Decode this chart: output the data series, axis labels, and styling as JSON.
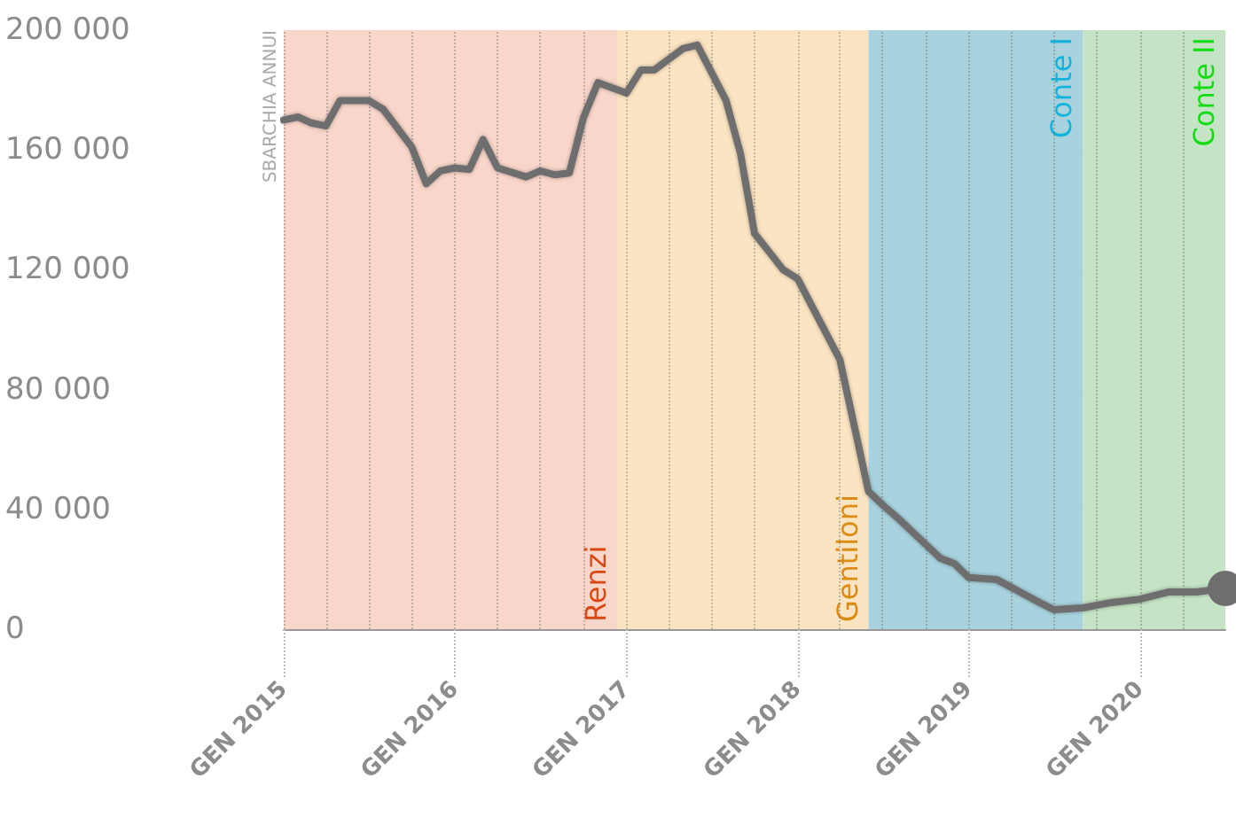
{
  "chart_data": {
    "type": "line",
    "ylabel": "SBARCHIA ANNUI",
    "x": [
      "2015-01",
      "2015-02",
      "2015-03",
      "2015-04",
      "2015-05",
      "2015-07",
      "2015-08",
      "2015-10",
      "2015-11",
      "2015-12",
      "2016-01",
      "2016-02",
      "2016-03",
      "2016-04",
      "2016-06",
      "2016-07",
      "2016-08",
      "2016-09",
      "2016-10",
      "2016-11",
      "2017-01",
      "2017-02",
      "2017-03",
      "2017-05",
      "2017-06",
      "2017-08",
      "2017-09",
      "2017-10",
      "2017-11",
      "2017-12",
      "2018-01",
      "2018-04",
      "2018-06",
      "2018-07",
      "2018-08",
      "2018-11",
      "2018-12",
      "2019-01",
      "2019-03",
      "2019-06",
      "2019-07",
      "2019-09",
      "2019-11",
      "2020-01",
      "2020-03",
      "2020-05",
      "2020-07"
    ],
    "series": [
      {
        "color": "#6e6e6e",
        "values": [
          170000,
          171000,
          169000,
          168000,
          176500,
          176500,
          173600,
          161000,
          148700,
          153000,
          154000,
          153500,
          163500,
          154000,
          151000,
          153000,
          151700,
          152300,
          170700,
          182500,
          179000,
          186700,
          186700,
          193800,
          195000,
          176600,
          158800,
          132100,
          126000,
          120000,
          117000,
          90000,
          46000,
          41500,
          37300,
          23700,
          21900,
          17200,
          16600,
          8900,
          6500,
          7100,
          8900,
          10000,
          12400,
          12400,
          13600
        ]
      }
    ],
    "xlim": [
      "2015-01",
      "2020-07"
    ],
    "xticks": [
      {
        "value": "2015-01",
        "label": "GEN 2015"
      },
      {
        "value": "2015-04",
        "label": null
      },
      {
        "value": "2015-07",
        "label": null
      },
      {
        "value": "2015-10",
        "label": null
      },
      {
        "value": "2016-01",
        "label": "GEN 2016"
      },
      {
        "value": "2016-04",
        "label": null
      },
      {
        "value": "2016-07",
        "label": null
      },
      {
        "value": "2016-10",
        "label": null
      },
      {
        "value": "2017-01",
        "label": "GEN 2017"
      },
      {
        "value": "2017-04",
        "label": null
      },
      {
        "value": "2017-07",
        "label": null
      },
      {
        "value": "2017-10",
        "label": null
      },
      {
        "value": "2018-01",
        "label": "GEN 2018"
      },
      {
        "value": "2018-04",
        "label": null
      },
      {
        "value": "2018-07",
        "label": null
      },
      {
        "value": "2018-10",
        "label": null
      },
      {
        "value": "2019-01",
        "label": "GEN 2019"
      },
      {
        "value": "2019-04",
        "label": null
      },
      {
        "value": "2019-07",
        "label": null
      },
      {
        "value": "2019-10",
        "label": null
      },
      {
        "value": "2020-01",
        "label": "GEN 2020"
      },
      {
        "value": "2020-04",
        "label": null
      }
    ],
    "ylim": [
      0,
      200000
    ],
    "yticks": [
      {
        "value": 0,
        "label": "0"
      },
      {
        "value": 40000,
        "label": "40 000"
      },
      {
        "value": 80000,
        "label": "80 000"
      },
      {
        "value": 120000,
        "label": "120 000"
      },
      {
        "value": 160000,
        "label": "160 000"
      },
      {
        "value": 200000,
        "label": "200 000"
      }
    ],
    "bands": [
      {
        "axis": "x",
        "from": "2015-01",
        "to": "2016-12-12",
        "label": "Renzi",
        "color": "#f9d6ca"
      },
      {
        "axis": "x",
        "from": "2016-12-12",
        "to": "2018-06",
        "label": "Gentiloni",
        "color": "#fbe4c2"
      },
      {
        "axis": "x",
        "from": "2018-06",
        "to": "2019-09",
        "label": "Conte I",
        "color": "#a8d3de"
      },
      {
        "axis": "x",
        "from": "2019-09",
        "to": "2020-07",
        "label": "Conte II",
        "color": "#c5e4c5"
      }
    ],
    "grid": true,
    "marker": "circle",
    "line_style": "solid"
  }
}
